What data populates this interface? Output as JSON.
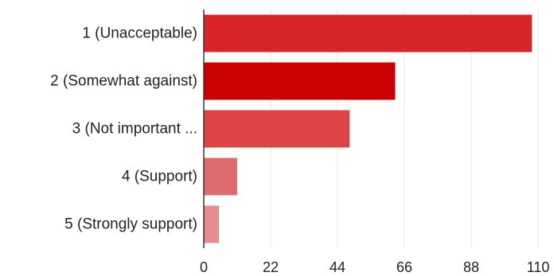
{
  "chart_data": {
    "type": "bar",
    "orientation": "horizontal",
    "title": "",
    "xlabel": "",
    "ylabel": "",
    "categories": [
      "1 (Unacceptable)",
      "2 (Somewhat against)",
      "3 (Not important ...",
      "4 (Support)",
      "5 (Strongly support)"
    ],
    "values": [
      108,
      63,
      48,
      11,
      5
    ],
    "bar_colors": [
      "#d9232a",
      "#cc0000",
      "#dd4444",
      "#e06b6e",
      "#e88d8f"
    ],
    "xlim": [
      0,
      110
    ],
    "xticks": [
      0,
      22,
      44,
      66,
      88,
      110
    ],
    "grid": false,
    "legend": "none"
  }
}
